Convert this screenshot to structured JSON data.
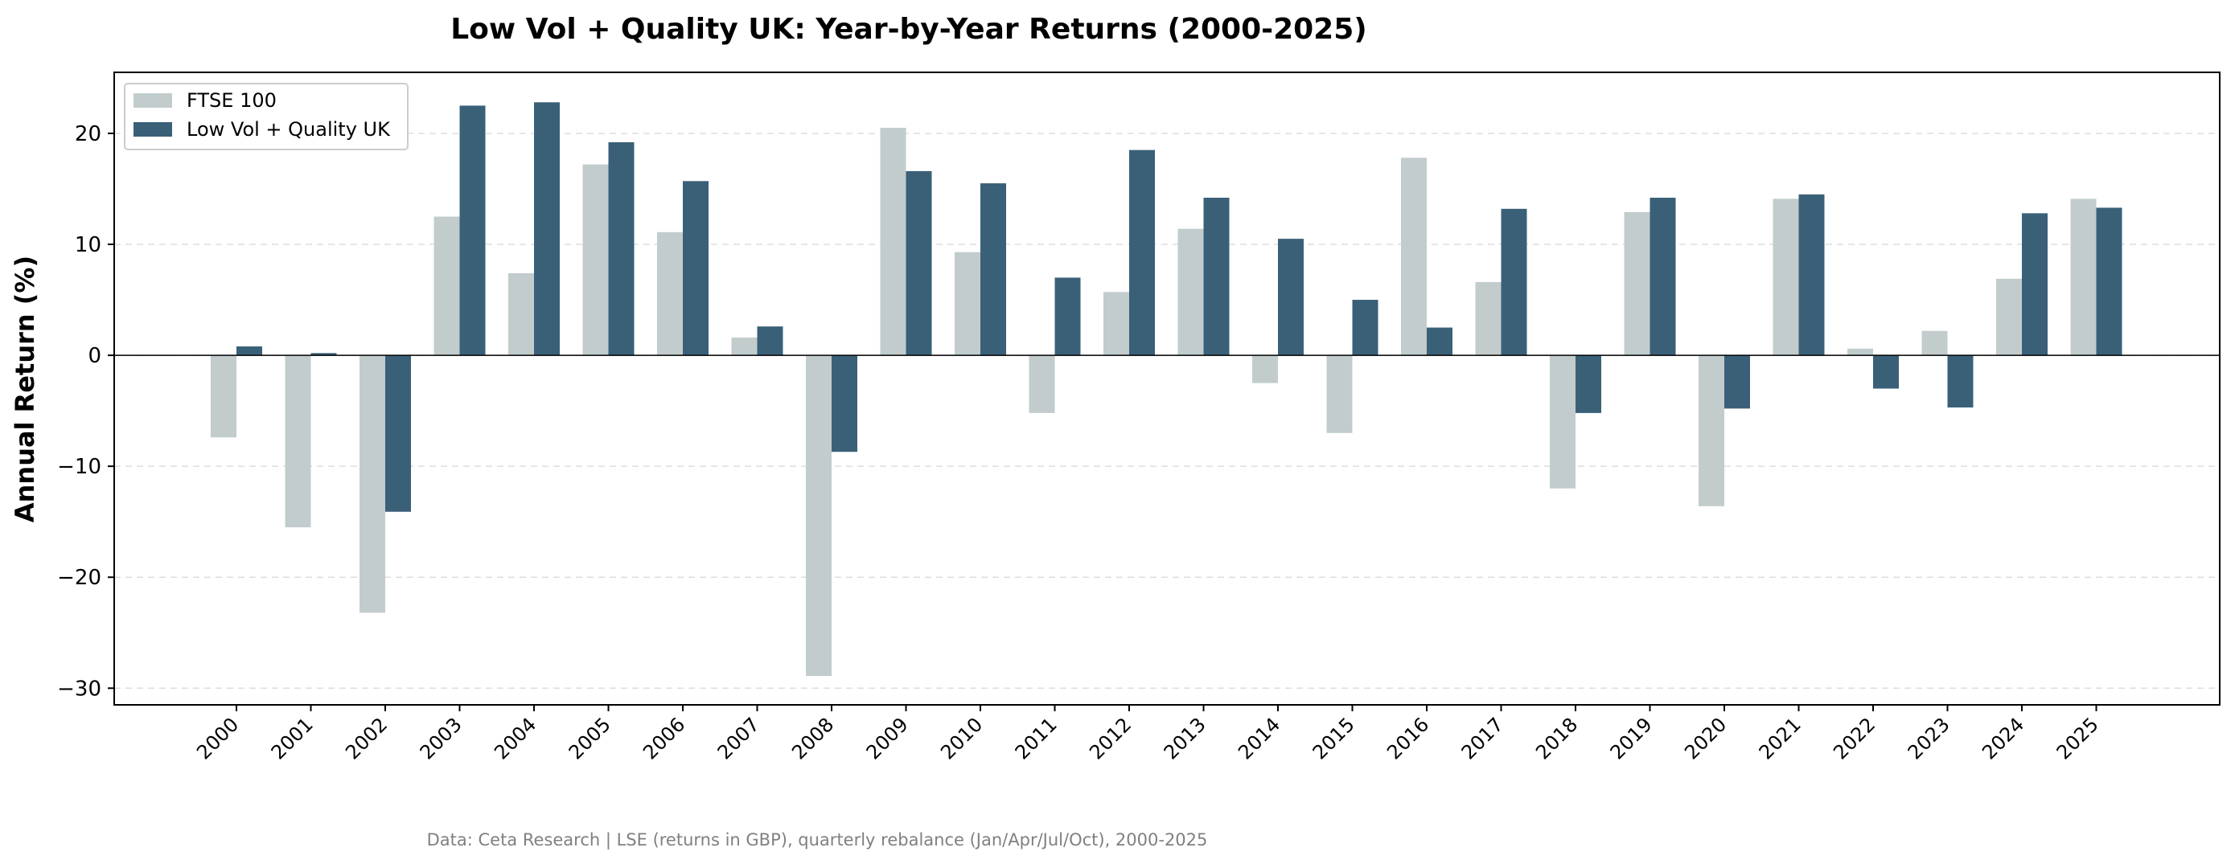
{
  "chart_data": {
    "type": "bar",
    "title": "Low Vol + Quality UK: Year-by-Year Returns (2000-2025)",
    "xlabel": "",
    "ylabel": "Annual Return (%)",
    "ylim": [
      -31.5,
      25.5
    ],
    "yticks": [
      20,
      10,
      0,
      -10,
      -20,
      -30
    ],
    "ytick_labels": [
      "20",
      "10",
      "0",
      "−10",
      "−20",
      "−30"
    ],
    "grid": "horizontal dashed",
    "legend_position": "top-left",
    "categories": [
      "2000",
      "2001",
      "2002",
      "2003",
      "2004",
      "2005",
      "2006",
      "2007",
      "2008",
      "2009",
      "2010",
      "2011",
      "2012",
      "2013",
      "2014",
      "2015",
      "2016",
      "2017",
      "2018",
      "2019",
      "2020",
      "2021",
      "2022",
      "2023",
      "2024",
      "2025"
    ],
    "series": [
      {
        "name": "FTSE 100",
        "color": "#c2cccd",
        "values": [
          -7.4,
          -15.5,
          -23.2,
          12.5,
          7.4,
          17.2,
          11.1,
          1.6,
          -28.9,
          20.5,
          9.3,
          -5.2,
          5.7,
          11.4,
          -2.5,
          -7.0,
          17.8,
          6.6,
          -12.0,
          12.9,
          -13.6,
          14.1,
          0.6,
          2.2,
          6.9,
          14.1
        ]
      },
      {
        "name": "Low Vol + Quality UK",
        "color": "#3a6078",
        "values": [
          0.8,
          0.2,
          -14.1,
          22.5,
          22.8,
          19.2,
          15.7,
          2.6,
          -8.7,
          16.6,
          15.5,
          7.0,
          18.5,
          14.2,
          10.5,
          5.0,
          2.5,
          13.2,
          -5.2,
          14.2,
          -4.8,
          14.5,
          -3.0,
          -4.7,
          12.8,
          13.3
        ]
      }
    ],
    "footer": "Data: Ceta Research | LSE (returns in GBP), quarterly rebalance (Jan/Apr/Jul/Oct), 2000-2025"
  }
}
